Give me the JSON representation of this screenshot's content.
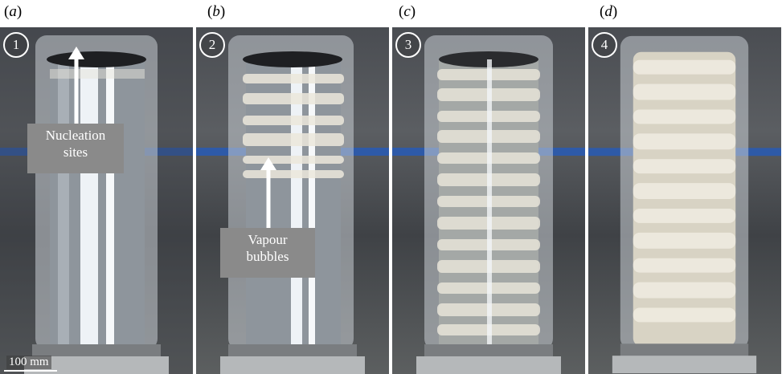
{
  "panels": [
    {
      "label_open": "(",
      "letter": "a",
      "label_close": ")",
      "step": "1"
    },
    {
      "label_open": "(",
      "letter": "b",
      "label_close": ")",
      "step": "2"
    },
    {
      "label_open": "(",
      "letter": "c",
      "label_close": ")",
      "step": "3"
    },
    {
      "label_open": "(",
      "letter": "d",
      "label_close": ")",
      "step": "4"
    }
  ],
  "annotations": {
    "nucleation_line1": "Nucleation",
    "nucleation_line2": "sites",
    "vapour_line1": "Vapour",
    "vapour_line2": "bubbles"
  },
  "scale_bar": {
    "text": "100 mm"
  },
  "colors": {
    "background": "#4a4d52",
    "callout_box": "#8a8a8a",
    "cylinder_glass": "#d9dde2",
    "bubbles": "#ece8dc",
    "blue_stripe": "#2e5aa8"
  }
}
